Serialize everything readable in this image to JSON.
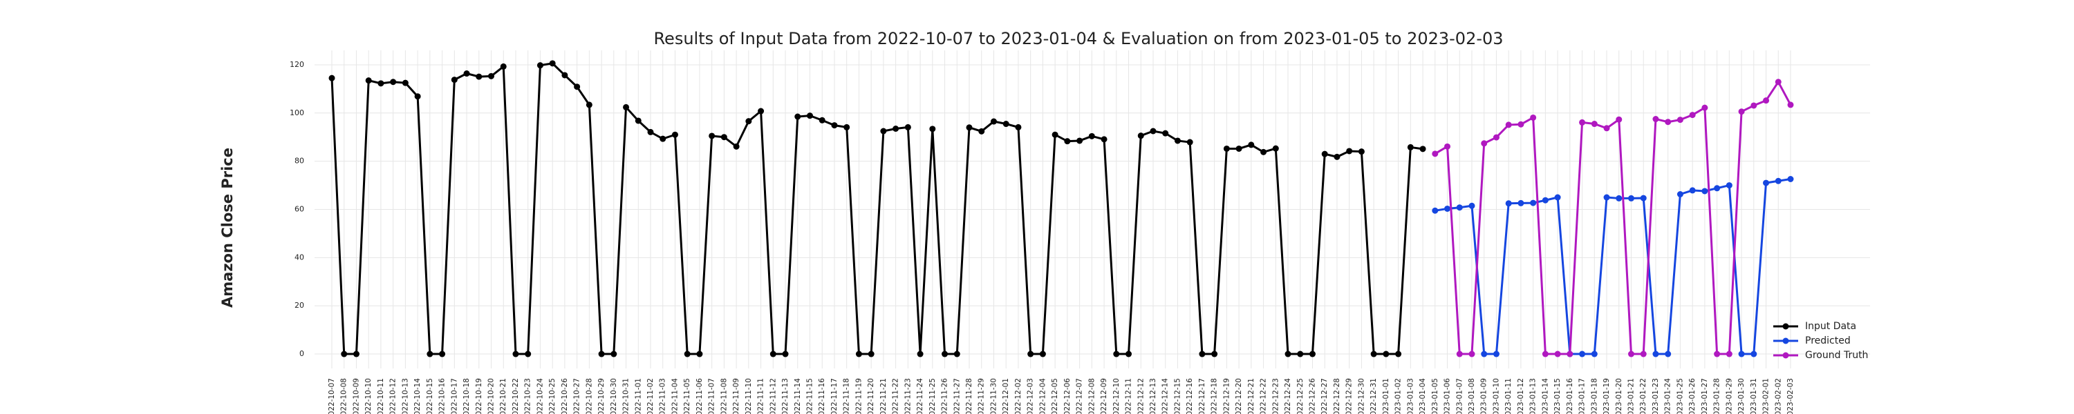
{
  "chart_data": {
    "type": "line",
    "title": "Results of Input Data from 2022-10-07 to 2023-01-04 & Evaluation on from 2023-01-05 to 2023-02-03",
    "y_label": "Amazon Close Price",
    "categories": [
      "2022-10-07",
      "2022-10-08",
      "2022-10-09",
      "2022-10-10",
      "2022-10-11",
      "2022-10-12",
      "2022-10-13",
      "2022-10-14",
      "2022-10-15",
      "2022-10-16",
      "2022-10-17",
      "2022-10-18",
      "2022-10-19",
      "2022-10-20",
      "2022-10-21",
      "2022-10-22",
      "2022-10-23",
      "2022-10-24",
      "2022-10-25",
      "2022-10-26",
      "2022-10-27",
      "2022-10-28",
      "2022-10-29",
      "2022-10-30",
      "2022-10-31",
      "2022-11-01",
      "2022-11-02",
      "2022-11-03",
      "2022-11-04",
      "2022-11-05",
      "2022-11-06",
      "2022-11-07",
      "2022-11-08",
      "2022-11-09",
      "2022-11-10",
      "2022-11-11",
      "2022-11-12",
      "2022-11-13",
      "2022-11-14",
      "2022-11-15",
      "2022-11-16",
      "2022-11-17",
      "2022-11-18",
      "2022-11-19",
      "2022-11-20",
      "2022-11-21",
      "2022-11-22",
      "2022-11-23",
      "2022-11-24",
      "2022-11-25",
      "2022-11-26",
      "2022-11-27",
      "2022-11-28",
      "2022-11-29",
      "2022-11-30",
      "2022-12-01",
      "2022-12-02",
      "2022-12-03",
      "2022-12-04",
      "2022-12-05",
      "2022-12-06",
      "2022-12-07",
      "2022-12-08",
      "2022-12-09",
      "2022-12-10",
      "2022-12-11",
      "2022-12-12",
      "2022-12-13",
      "2022-12-14",
      "2022-12-15",
      "2022-12-16",
      "2022-12-17",
      "2022-12-18",
      "2022-12-19",
      "2022-12-20",
      "2022-12-21",
      "2022-12-22",
      "2022-12-23",
      "2022-12-24",
      "2022-12-25",
      "2022-12-26",
      "2022-12-27",
      "2022-12-28",
      "2022-12-29",
      "2022-12-30",
      "2022-12-31",
      "2023-01-01",
      "2023-01-02",
      "2023-01-03",
      "2023-01-04",
      "2023-01-05",
      "2023-01-06",
      "2023-01-07",
      "2023-01-08",
      "2023-01-09",
      "2023-01-10",
      "2023-01-11",
      "2023-01-12",
      "2023-01-13",
      "2023-01-14",
      "2023-01-15",
      "2023-01-16",
      "2023-01-17",
      "2023-01-18",
      "2023-01-19",
      "2023-01-20",
      "2023-01-21",
      "2023-01-22",
      "2023-01-23",
      "2023-01-24",
      "2023-01-25",
      "2023-01-26",
      "2023-01-27",
      "2023-01-28",
      "2023-01-29",
      "2023-01-30",
      "2023-01-31",
      "2023-02-01",
      "2023-02-02",
      "2023-02-03"
    ],
    "series": [
      {
        "name": "Input Data",
        "color": "#000000",
        "values": [
          114.5,
          0,
          0,
          113.5,
          112.3,
          112.9,
          112.5,
          106.9,
          0,
          0,
          113.8,
          116.4,
          115.1,
          115.3,
          119.3,
          0,
          0,
          119.8,
          120.6,
          115.7,
          110.9,
          103.4,
          0,
          0,
          102.4,
          96.8,
          92.1,
          89.3,
          91.0,
          0,
          0,
          90.5,
          90.0,
          86.1,
          96.6,
          100.8,
          0,
          0,
          98.5,
          98.9,
          97.0,
          94.9,
          94.1,
          0,
          0,
          92.5,
          93.5,
          94.1,
          0,
          93.4,
          0,
          0,
          94.0,
          92.4,
          96.5,
          95.5,
          94.1,
          0,
          0,
          91.0,
          88.3,
          88.5,
          90.4,
          89.1,
          0,
          0,
          90.6,
          92.5,
          91.6,
          88.5,
          87.9,
          0,
          0,
          85.2,
          85.2,
          86.8,
          83.8,
          85.3,
          0,
          0,
          0,
          83.0,
          81.8,
          84.2,
          84.0,
          0,
          0,
          0,
          85.8,
          85.1,
          null,
          null,
          null,
          null,
          null,
          null,
          null,
          null,
          null,
          null,
          null,
          null,
          null,
          null,
          null,
          null,
          null,
          null,
          null,
          null,
          null,
          null,
          null,
          null,
          null,
          null,
          null,
          null,
          null,
          null
        ]
      },
      {
        "name": "Predicted",
        "color": "#1546e0",
        "values": [
          null,
          null,
          null,
          null,
          null,
          null,
          null,
          null,
          null,
          null,
          null,
          null,
          null,
          null,
          null,
          null,
          null,
          null,
          null,
          null,
          null,
          null,
          null,
          null,
          null,
          null,
          null,
          null,
          null,
          null,
          null,
          null,
          null,
          null,
          null,
          null,
          null,
          null,
          null,
          null,
          null,
          null,
          null,
          null,
          null,
          null,
          null,
          null,
          null,
          null,
          null,
          null,
          null,
          null,
          null,
          null,
          null,
          null,
          null,
          null,
          null,
          null,
          null,
          null,
          null,
          null,
          null,
          null,
          null,
          null,
          null,
          null,
          null,
          null,
          null,
          null,
          null,
          null,
          null,
          null,
          null,
          null,
          null,
          null,
          null,
          null,
          null,
          null,
          null,
          null,
          59.5,
          60.3,
          60.8,
          61.5,
          0,
          0,
          62.5,
          62.6,
          62.7,
          63.8,
          65.0,
          0,
          0,
          0,
          65.0,
          64.6,
          64.6,
          64.7,
          0,
          0,
          66.3,
          67.9,
          67.6,
          68.8,
          70.0,
          0,
          0,
          71.0,
          71.8,
          72.6
        ]
      },
      {
        "name": "Ground Truth",
        "color": "#b018c0",
        "values": [
          null,
          null,
          null,
          null,
          null,
          null,
          null,
          null,
          null,
          null,
          null,
          null,
          null,
          null,
          null,
          null,
          null,
          null,
          null,
          null,
          null,
          null,
          null,
          null,
          null,
          null,
          null,
          null,
          null,
          null,
          null,
          null,
          null,
          null,
          null,
          null,
          null,
          null,
          null,
          null,
          null,
          null,
          null,
          null,
          null,
          null,
          null,
          null,
          null,
          null,
          null,
          null,
          null,
          null,
          null,
          null,
          null,
          null,
          null,
          null,
          null,
          null,
          null,
          null,
          null,
          null,
          null,
          null,
          null,
          null,
          null,
          null,
          null,
          null,
          null,
          null,
          null,
          null,
          null,
          null,
          null,
          null,
          null,
          null,
          null,
          null,
          null,
          null,
          null,
          null,
          83.1,
          86.1,
          0,
          0,
          87.4,
          89.9,
          95.1,
          95.3,
          98.1,
          0,
          0,
          0,
          96.1,
          95.5,
          93.7,
          97.3,
          0,
          0,
          97.5,
          96.3,
          97.2,
          99.2,
          102.2,
          0,
          0,
          100.6,
          103.1,
          105.2,
          112.9,
          103.4
        ]
      }
    ],
    "ylim": [
      -6,
      126
    ],
    "yticks": [
      0,
      20,
      40,
      60,
      80,
      100,
      120
    ],
    "grid": true,
    "legend": "lower right"
  }
}
